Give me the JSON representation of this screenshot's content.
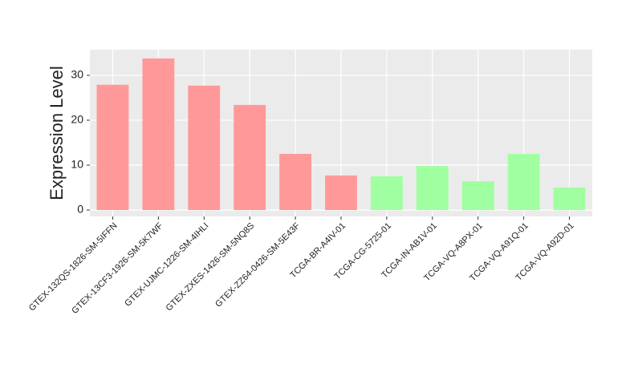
{
  "chart_data": {
    "type": "bar",
    "y_label": "Expression Level",
    "categories": [
      "GTEX-132QS-1826-SM-5IFFN",
      "GTEX-13CF3-1926-SM-5K7WF",
      "GTEX-UJMC-1226-SM-4IHLI",
      "GTEX-ZXES-1426-SM-5NQ8S",
      "GTEX-ZZ64-0426-SM-5E43F",
      "TCGA-BR-A4IV-01",
      "TCGA-CG-5725-01",
      "TCGA-IN-AB1V-01",
      "TCGA-VQ-A8PX-01",
      "TCGA-VQ-A91Q-01",
      "TCGA-VQ-A92D-01"
    ],
    "values": [
      27.9,
      33.75,
      27.7,
      23.4,
      12.5,
      7.7,
      7.5,
      9.8,
      6.4,
      12.5,
      5.0
    ],
    "colors": [
      "#ff9999",
      "#ff9999",
      "#ff9999",
      "#ff9999",
      "#ff9999",
      "#ff9999",
      "#a0ffa0",
      "#a0ffa0",
      "#a0ffa0",
      "#a0ffa0",
      "#a0ffa0"
    ],
    "ylim": [
      -1.43,
      35.7
    ],
    "yticks": [
      0,
      10,
      20,
      30
    ],
    "grid": true
  }
}
